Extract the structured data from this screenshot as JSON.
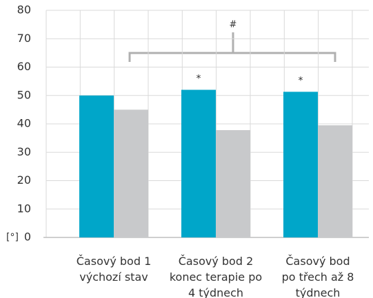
{
  "chart_data": {
    "type": "bar",
    "categories": [
      "Časový bod 1\nvýchozí stav",
      "Časový bod 2\nkonec terapie po\n4 týdnech",
      "Časový bod\npo třech až 8\ntýdnech"
    ],
    "series": [
      {
        "color": "#00a6c9",
        "values": [
          50,
          52,
          51.3
        ]
      },
      {
        "color": "#c8c9cb",
        "values": [
          45,
          37.8,
          39.5
        ]
      }
    ],
    "y_label": "[°]",
    "annotations": [
      "#",
      "*",
      "*"
    ],
    "ylim": [
      0,
      80
    ],
    "yticks": [
      0,
      10,
      20,
      30,
      40,
      50,
      60,
      70,
      80
    ],
    "grid": true
  }
}
